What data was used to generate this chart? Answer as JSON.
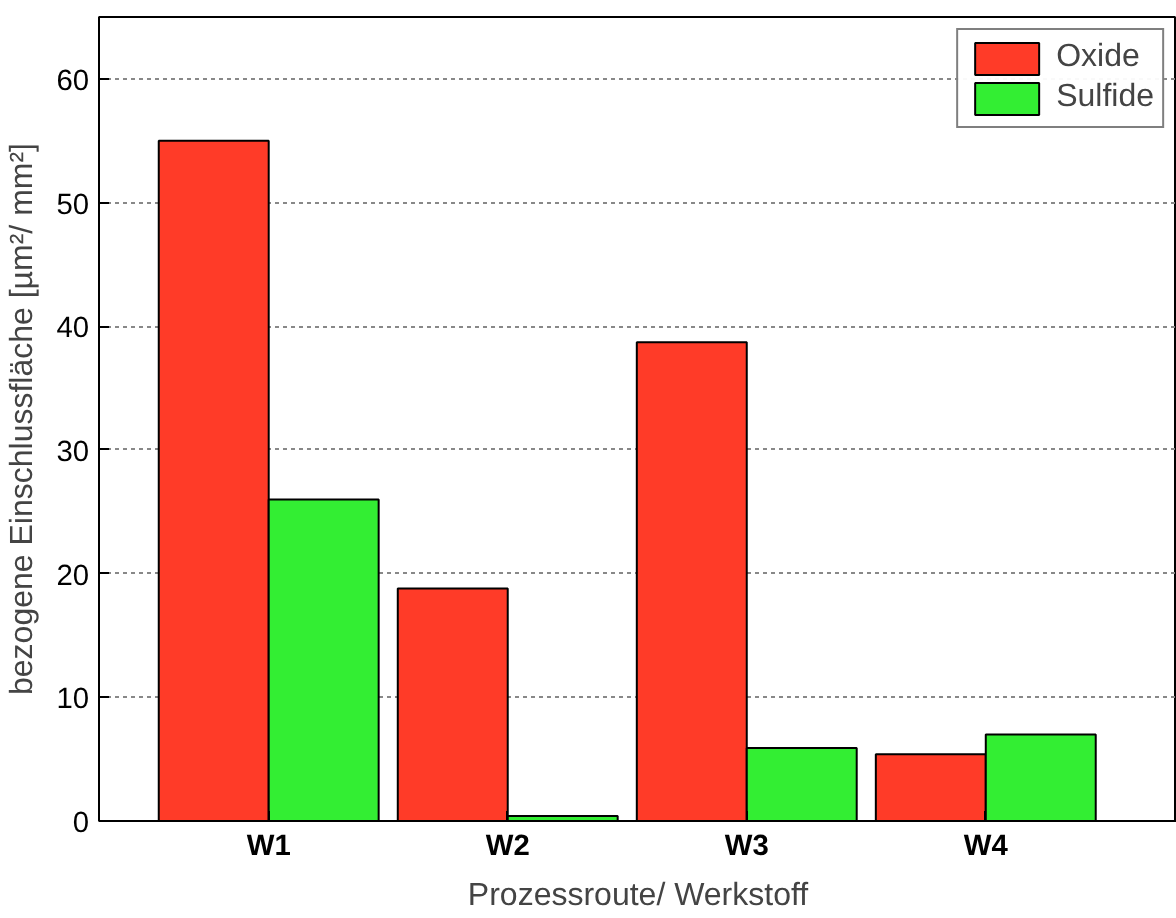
{
  "chart_data": {
    "type": "bar",
    "xlabel": "Prozessroute/ Werkstoff",
    "ylabel": "bezogene Einschlussfläche [µm²/ mm²]",
    "categories": [
      "W1",
      "W2",
      "W3",
      "W4"
    ],
    "series": [
      {
        "name": "Oxide",
        "color": "#ff3b28",
        "values": [
          55,
          18.8,
          38.7,
          5.4
        ]
      },
      {
        "name": "Sulfide",
        "color": "#33ee33",
        "values": [
          26,
          0.4,
          5.9,
          7.0
        ]
      }
    ],
    "ylim": [
      0,
      65
    ],
    "yticks": [
      0,
      10,
      20,
      30,
      40,
      50,
      60
    ],
    "grid": "y",
    "legend": "top right"
  }
}
